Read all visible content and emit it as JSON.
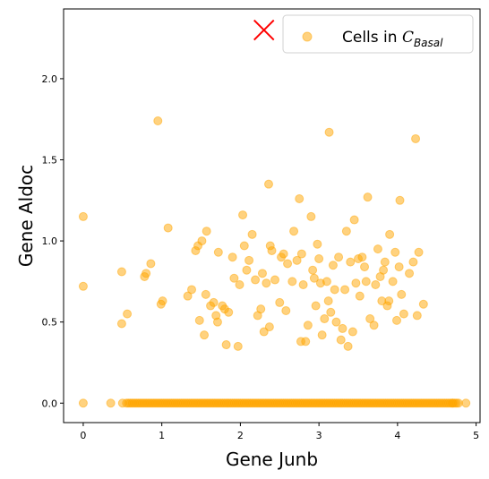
{
  "chart_data": {
    "type": "scatter",
    "title": "",
    "xlabel": "Gene Junb",
    "ylabel": "Gene Aldoc",
    "xlim": [
      -0.25,
      5.05
    ],
    "ylim": [
      -0.12,
      2.43
    ],
    "xticks": [
      0,
      1,
      2,
      3,
      4,
      5
    ],
    "yticks": [
      0.0,
      0.5,
      1.0,
      1.5,
      2.0
    ],
    "xtick_labels": [
      "0",
      "1",
      "2",
      "3",
      "4",
      "5"
    ],
    "ytick_labels": [
      "0.0",
      "0.5",
      "1.0",
      "1.5",
      "2.0"
    ],
    "grid": false,
    "legend": {
      "position": "top-right",
      "label_prefix": "Cells in ",
      "label_math": "C",
      "label_sub": "Basal"
    },
    "series": [
      {
        "name": "Cells in C_Basal",
        "color": "#FFA500",
        "alpha": 0.5,
        "marker": "circle",
        "points": [
          [
            0,
            1.15
          ],
          [
            0,
            0.72
          ],
          [
            0.49,
            0.81
          ],
          [
            0.49,
            0.49
          ],
          [
            0.56,
            0.55
          ],
          [
            0.78,
            0.78
          ],
          [
            0.8,
            0.8
          ],
          [
            0.86,
            0.86
          ],
          [
            0.95,
            1.74
          ],
          [
            0.99,
            0.61
          ],
          [
            1.01,
            0.63
          ],
          [
            1.08,
            1.08
          ],
          [
            1.33,
            0.66
          ],
          [
            1.38,
            0.7
          ],
          [
            1.43,
            0.94
          ],
          [
            1.46,
            0.97
          ],
          [
            1.48,
            0.51
          ],
          [
            1.51,
            1.0
          ],
          [
            1.54,
            0.42
          ],
          [
            1.56,
            0.67
          ],
          [
            1.57,
            1.06
          ],
          [
            1.62,
            0.6
          ],
          [
            1.66,
            0.62
          ],
          [
            1.69,
            0.54
          ],
          [
            1.71,
            0.5
          ],
          [
            1.72,
            0.93
          ],
          [
            1.77,
            0.6
          ],
          [
            1.8,
            0.58
          ],
          [
            1.82,
            0.36
          ],
          [
            1.85,
            0.56
          ],
          [
            1.9,
            0.9
          ],
          [
            1.92,
            0.77
          ],
          [
            1.97,
            0.35
          ],
          [
            1.99,
            0.73
          ],
          [
            2.03,
            1.16
          ],
          [
            2.05,
            0.97
          ],
          [
            2.08,
            0.82
          ],
          [
            2.11,
            0.88
          ],
          [
            2.15,
            1.04
          ],
          [
            2.19,
            0.76
          ],
          [
            2.22,
            0.54
          ],
          [
            2.26,
            0.58
          ],
          [
            2.28,
            0.8
          ],
          [
            2.3,
            0.44
          ],
          [
            2.33,
            0.74
          ],
          [
            2.36,
            1.35
          ],
          [
            2.37,
            0.47
          ],
          [
            2.38,
            0.97
          ],
          [
            2.4,
            0.94
          ],
          [
            2.44,
            0.76
          ],
          [
            2.5,
            0.62
          ],
          [
            2.52,
            0.9
          ],
          [
            2.55,
            0.92
          ],
          [
            2.58,
            0.57
          ],
          [
            2.6,
            0.86
          ],
          [
            2.66,
            0.75
          ],
          [
            2.68,
            1.06
          ],
          [
            2.72,
            0.88
          ],
          [
            2.75,
            1.26
          ],
          [
            2.77,
            0.38
          ],
          [
            2.78,
            0.92
          ],
          [
            2.8,
            0.73
          ],
          [
            2.83,
            0.38
          ],
          [
            2.86,
            0.48
          ],
          [
            2.9,
            1.15
          ],
          [
            2.92,
            0.82
          ],
          [
            2.94,
            0.77
          ],
          [
            2.96,
            0.6
          ],
          [
            2.98,
            0.98
          ],
          [
            3.0,
            0.89
          ],
          [
            3.02,
            0.74
          ],
          [
            3.04,
            0.42
          ],
          [
            3.07,
            0.52
          ],
          [
            3.1,
            0.75
          ],
          [
            3.12,
            0.63
          ],
          [
            3.13,
            1.67
          ],
          [
            3.15,
            0.56
          ],
          [
            3.18,
            0.85
          ],
          [
            3.2,
            0.7
          ],
          [
            3.22,
            0.5
          ],
          [
            3.25,
            0.9
          ],
          [
            3.28,
            0.39
          ],
          [
            3.3,
            0.46
          ],
          [
            3.33,
            0.7
          ],
          [
            3.35,
            1.06
          ],
          [
            3.37,
            0.35
          ],
          [
            3.4,
            0.87
          ],
          [
            3.43,
            0.44
          ],
          [
            3.45,
            1.13
          ],
          [
            3.47,
            0.74
          ],
          [
            3.5,
            0.89
          ],
          [
            3.52,
            0.66
          ],
          [
            3.55,
            0.9
          ],
          [
            3.58,
            0.84
          ],
          [
            3.6,
            0.75
          ],
          [
            3.62,
            1.27
          ],
          [
            3.65,
            0.52
          ],
          [
            3.7,
            0.48
          ],
          [
            3.72,
            0.73
          ],
          [
            3.75,
            0.95
          ],
          [
            3.78,
            0.78
          ],
          [
            3.8,
            0.63
          ],
          [
            3.82,
            0.82
          ],
          [
            3.84,
            0.87
          ],
          [
            3.87,
            0.6
          ],
          [
            3.89,
            0.63
          ],
          [
            3.9,
            1.04
          ],
          [
            3.94,
            0.75
          ],
          [
            3.97,
            0.93
          ],
          [
            3.99,
            0.51
          ],
          [
            4.02,
            0.84
          ],
          [
            4.03,
            1.25
          ],
          [
            4.05,
            0.67
          ],
          [
            4.08,
            0.55
          ],
          [
            4.15,
            0.8
          ],
          [
            4.2,
            0.87
          ],
          [
            4.23,
            1.63
          ],
          [
            4.27,
            0.93
          ],
          [
            4.33,
            0.61
          ],
          [
            4.25,
            0.54
          ],
          [
            0,
            0
          ],
          [
            0.35,
            0
          ],
          [
            0.5,
            0
          ],
          [
            4.87,
            0
          ],
          [
            4.7,
            0
          ]
        ],
        "dense_band": {
          "y": 0,
          "x_from": 0.55,
          "x_to": 4.78
        }
      }
    ],
    "annotations": [
      {
        "type": "marker",
        "shape": "x",
        "color": "#FF0000",
        "x": 2.3,
        "y": 2.3
      }
    ]
  }
}
